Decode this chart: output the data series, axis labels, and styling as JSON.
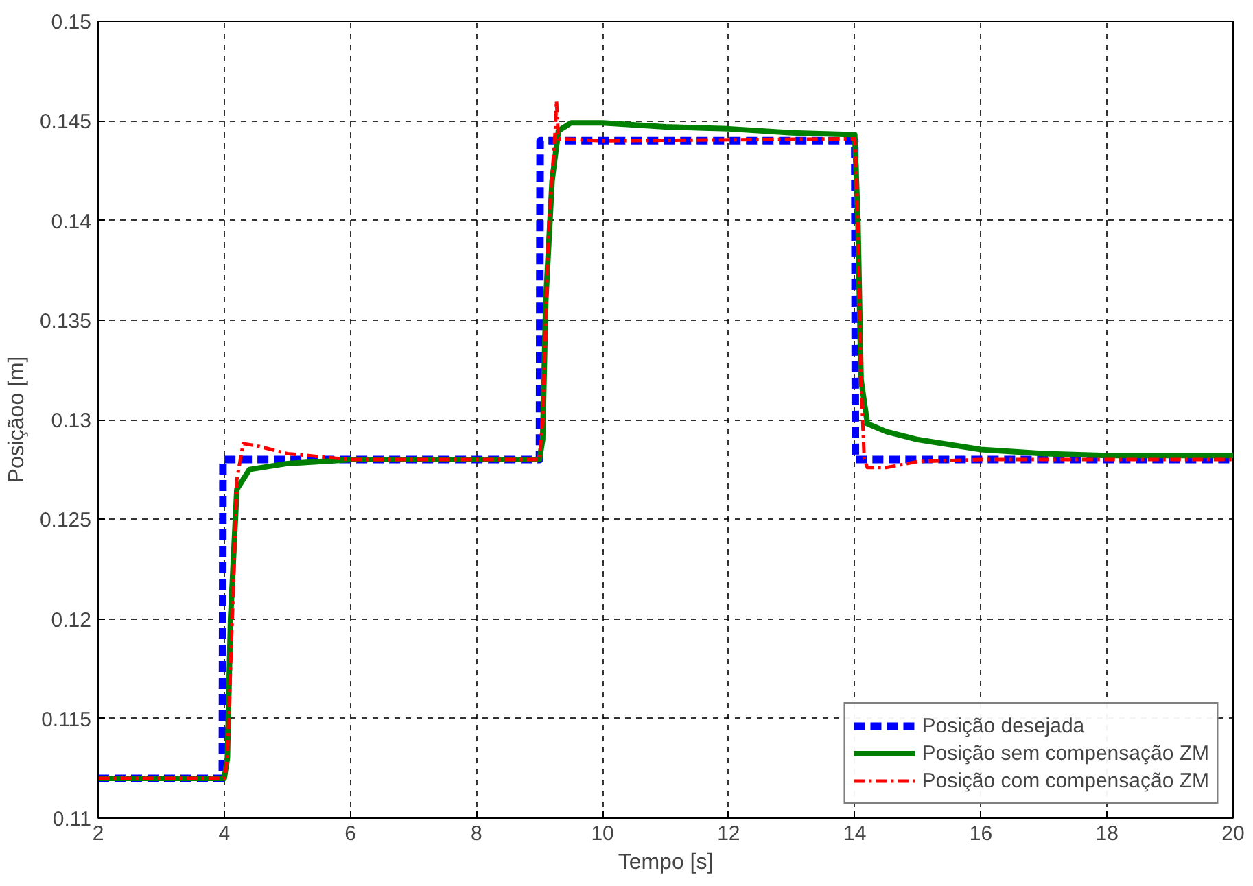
{
  "chart_data": {
    "type": "line",
    "xlabel": "Tempo [s]",
    "ylabel": "Posiçãoo [m]",
    "xlim": [
      2,
      20
    ],
    "ylim": [
      0.11,
      0.15
    ],
    "xticks": [
      2,
      4,
      6,
      8,
      10,
      12,
      14,
      16,
      18,
      20
    ],
    "yticks": [
      0.11,
      0.115,
      0.12,
      0.125,
      0.13,
      0.135,
      0.14,
      0.145,
      0.15
    ],
    "grid": true,
    "legend": "bottom right",
    "series": [
      {
        "name": "Posição desejada",
        "color": "#0000ff",
        "line_style": "dashed",
        "x": [
          2,
          3.97,
          3.98,
          9.0,
          9.01,
          14.0,
          14.01,
          20
        ],
        "values": [
          0.112,
          0.112,
          0.128,
          0.128,
          0.144,
          0.144,
          0.128,
          0.128
        ]
      },
      {
        "name": "Posição sem compensação ZM",
        "color": "#008000",
        "line_style": "solid",
        "x": [
          2,
          4,
          4.05,
          4.1,
          4.2,
          4.4,
          5,
          6,
          9,
          9.05,
          9.1,
          9.2,
          9.3,
          9.5,
          10,
          11,
          12,
          13,
          14,
          14.05,
          14.1,
          14.2,
          14.5,
          15,
          16,
          17,
          18,
          20
        ],
        "values": [
          0.112,
          0.112,
          0.113,
          0.12,
          0.1265,
          0.1275,
          0.1278,
          0.128,
          0.128,
          0.129,
          0.136,
          0.142,
          0.1445,
          0.1449,
          0.1449,
          0.1447,
          0.1446,
          0.1444,
          0.1443,
          0.14,
          0.132,
          0.1298,
          0.1294,
          0.129,
          0.1285,
          0.1283,
          0.1282,
          0.1282
        ]
      },
      {
        "name": "Posição com compensação ZM",
        "color": "#ff0000",
        "line_style": "dashdot",
        "x": [
          2,
          4,
          4.05,
          4.15,
          4.2,
          4.3,
          4.5,
          5,
          6,
          9,
          9.05,
          9.15,
          9.25,
          9.27,
          9.3,
          10,
          14,
          14.05,
          14.1,
          14.15,
          14.2,
          14.5,
          15,
          16,
          20
        ],
        "values": [
          0.112,
          0.112,
          0.113,
          0.122,
          0.127,
          0.1288,
          0.1287,
          0.1283,
          0.128,
          0.128,
          0.13,
          0.14,
          0.1445,
          0.146,
          0.1441,
          0.144,
          0.1441,
          0.14,
          0.132,
          0.128,
          0.1276,
          0.1276,
          0.1279,
          0.128,
          0.128
        ]
      }
    ]
  }
}
